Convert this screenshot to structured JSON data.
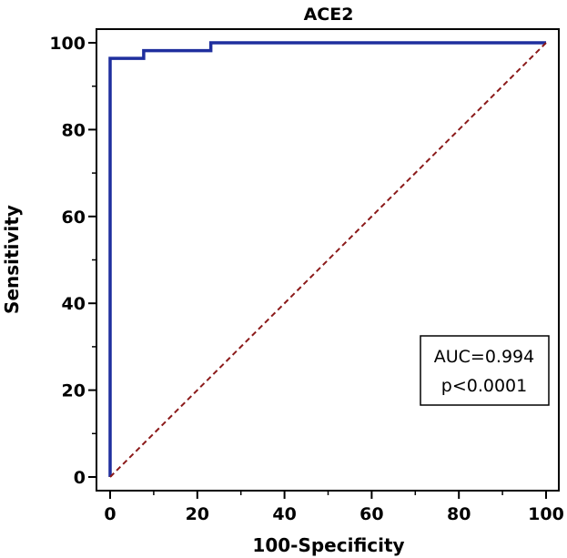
{
  "chart_data": {
    "type": "line",
    "title": "ACE2",
    "xlabel": "100-Specificity",
    "ylabel": "Sensitivity",
    "xlim": [
      0,
      100
    ],
    "ylim": [
      0,
      100
    ],
    "x_ticks": [
      0,
      20,
      40,
      60,
      80,
      100
    ],
    "y_ticks": [
      0,
      20,
      40,
      60,
      80,
      100
    ],
    "x_tick_labels": [
      "0",
      "20",
      "40",
      "60",
      "80",
      "100"
    ],
    "y_tick_labels": [
      "0",
      "20",
      "40",
      "60",
      "80",
      "100"
    ],
    "minor_tick_step": 10,
    "grid": false,
    "series": [
      {
        "style": "solid",
        "color": "#1f2f9e",
        "x": [
          0,
          0,
          7.7,
          7.7,
          23.1,
          23.1,
          100
        ],
        "y": [
          0,
          96.4,
          96.4,
          98.2,
          98.2,
          100,
          100
        ]
      },
      {
        "style": "dashed",
        "color": "#8b1a1a",
        "x": [
          0,
          100
        ],
        "y": [
          0,
          100
        ]
      }
    ],
    "annotations": [
      "AUC=0.994",
      "p<0.0001"
    ]
  }
}
